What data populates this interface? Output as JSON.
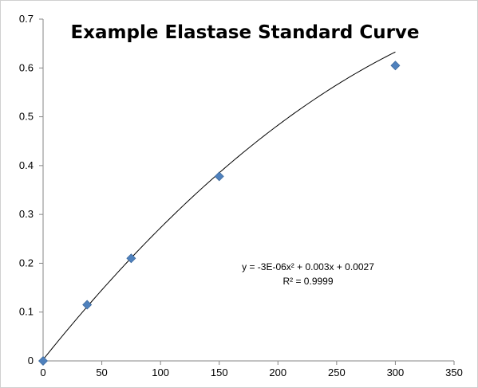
{
  "chart_data": {
    "type": "scatter",
    "title": "Example Elastase Standard Curve",
    "xlabel": "",
    "ylabel": "",
    "xlim": [
      0,
      350
    ],
    "ylim": [
      0,
      0.7
    ],
    "x_ticks": [
      0,
      50,
      100,
      150,
      200,
      250,
      300,
      350
    ],
    "y_ticks": [
      0,
      0.1,
      0.2,
      0.3,
      0.4,
      0.5,
      0.6,
      0.7
    ],
    "grid": false,
    "legend": "none",
    "series": [
      {
        "x": [
          0,
          37.5,
          75,
          150,
          300
        ],
        "y": [
          0.0,
          0.115,
          0.21,
          0.378,
          0.605
        ],
        "marker": "diamond",
        "color": "#4f81bd"
      }
    ],
    "trendline": {
      "type": "polynomial",
      "coefficients": [
        -3e-06,
        0.003,
        0.0027
      ],
      "x_range": [
        0,
        300
      ],
      "color": "#000000"
    },
    "annotations": {
      "equation": "y = -3E-06x² + 0.003x + 0.0027",
      "r_squared": "R² = 0.9999"
    }
  }
}
